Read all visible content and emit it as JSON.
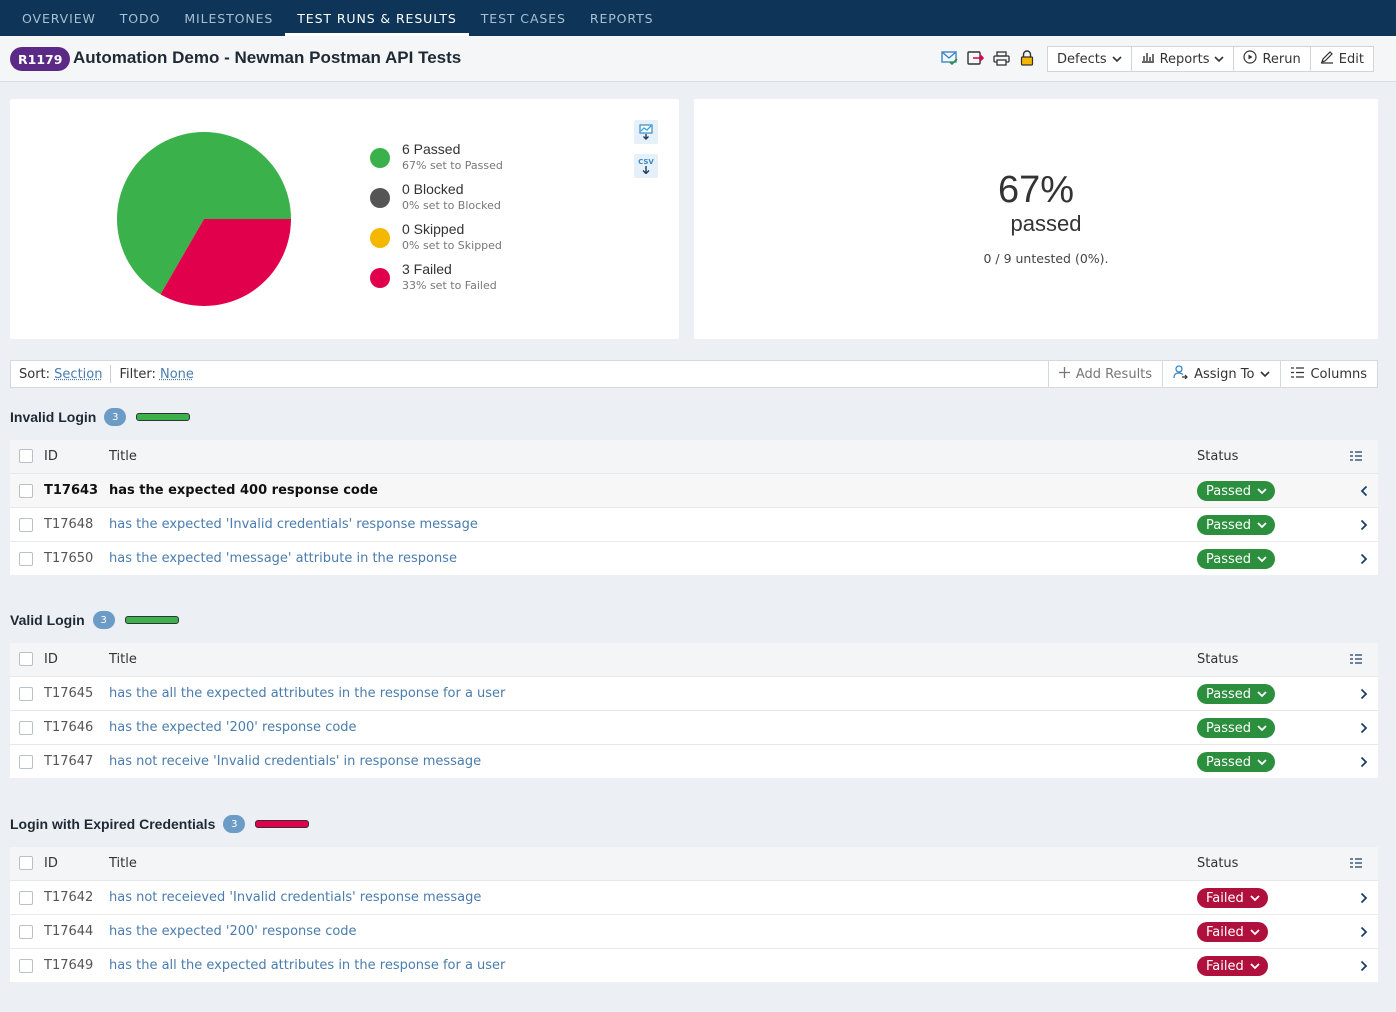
{
  "nav": {
    "tabs": [
      "OVERVIEW",
      "TODO",
      "MILESTONES",
      "TEST RUNS & RESULTS",
      "TEST CASES",
      "REPORTS"
    ],
    "active_index": 3
  },
  "header": {
    "run_id": "R1179",
    "title": "Automation Demo - Newman Postman API Tests",
    "icons": [
      "mail-check-icon",
      "export-icon",
      "print-icon",
      "lock-icon"
    ],
    "buttons": {
      "defects": "Defects",
      "reports": "Reports",
      "rerun": "Rerun",
      "edit": "Edit"
    }
  },
  "summary": {
    "legend": [
      {
        "count_label": "6 Passed",
        "sub": "67% set to Passed",
        "color": "#3ab14a",
        "value": 6
      },
      {
        "count_label": "0 Blocked",
        "sub": "0% set to Blocked",
        "color": "#555555",
        "value": 0
      },
      {
        "count_label": "0 Skipped",
        "sub": "0% set to Skipped",
        "color": "#f5b800",
        "value": 0
      },
      {
        "count_label": "3 Failed",
        "sub": "33% set to Failed",
        "color": "#e0004b",
        "value": 3
      }
    ],
    "download_icons": [
      "chart-download-icon",
      "csv-download-icon"
    ],
    "csv_label": "CSV",
    "percent": "67%",
    "percent_word": "passed",
    "untested": "0 / 9 untested (0%)."
  },
  "toolbar": {
    "sort_label": "Sort:",
    "sort_value": "Section",
    "filter_label": "Filter:",
    "filter_value": "None",
    "add_results": "Add Results",
    "assign_to": "Assign To",
    "columns": "Columns"
  },
  "table_headers": {
    "id": "ID",
    "title": "Title",
    "status": "Status"
  },
  "sections": [
    {
      "name": "Invalid Login",
      "count": "3",
      "bar_color": "#3ab14a",
      "rows": [
        {
          "id": "T17643",
          "title": "has the expected 400 response code",
          "status": "Passed",
          "selected": true
        },
        {
          "id": "T17648",
          "title": "has the expected 'Invalid credentials' response message",
          "status": "Passed",
          "selected": false
        },
        {
          "id": "T17650",
          "title": "has the expected 'message' attribute in the response",
          "status": "Passed",
          "selected": false
        }
      ]
    },
    {
      "name": "Valid Login",
      "count": "3",
      "bar_color": "#3ab14a",
      "rows": [
        {
          "id": "T17645",
          "title": "has the all the expected attributes in the response for a user",
          "status": "Passed",
          "selected": false
        },
        {
          "id": "T17646",
          "title": "has the expected '200' response code",
          "status": "Passed",
          "selected": false
        },
        {
          "id": "T17647",
          "title": "has not receive 'Invalid credentials' in response message",
          "status": "Passed",
          "selected": false
        }
      ]
    },
    {
      "name": "Login with Expired Credentials",
      "count": "3",
      "bar_color": "#e0004b",
      "rows": [
        {
          "id": "T17642",
          "title": "has not receieved 'Invalid credentials' response message",
          "status": "Failed",
          "selected": false
        },
        {
          "id": "T17644",
          "title": "has the expected '200' response code",
          "status": "Failed",
          "selected": false
        },
        {
          "id": "T17649",
          "title": "has the all the expected attributes in the response for a user",
          "status": "Failed",
          "selected": false
        }
      ]
    }
  ]
}
